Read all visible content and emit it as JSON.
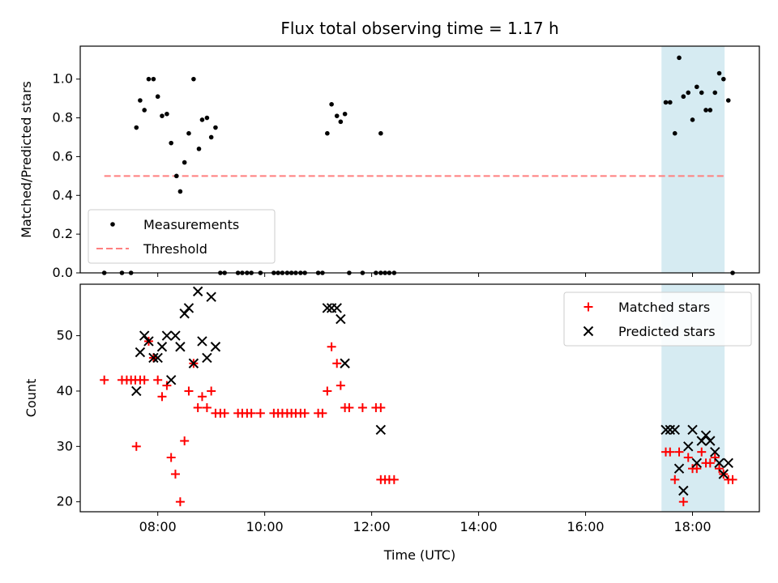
{
  "title": "Flux total observing time = 1.17 h",
  "chart_data": [
    {
      "type": "scatter",
      "panel": "top",
      "ylabel": "Matched/Predicted stars",
      "ylim": [
        0,
        1.17
      ],
      "yticks": [
        0.0,
        0.2,
        0.4,
        0.6,
        0.8,
        1.0
      ],
      "ytick_labels": [
        "0.0",
        "0.2",
        "0.4",
        "0.6",
        "0.8",
        "1.0"
      ],
      "highlight_span": [
        17.42,
        18.6
      ],
      "legend": {
        "placement": "lower-left",
        "entries": [
          "Measurements",
          "Threshold"
        ]
      },
      "threshold": {
        "name": "Threshold",
        "y": 0.5,
        "x_range": [
          7.0,
          18.62
        ],
        "color": "#ff7f7f",
        "style": "dashed"
      },
      "series": [
        {
          "name": "Measurements",
          "color": "#000000",
          "marker": "dot",
          "points": [
            [
              7.0,
              0.0
            ],
            [
              7.33,
              0.0
            ],
            [
              7.5,
              0.0
            ],
            [
              7.6,
              0.75
            ],
            [
              7.67,
              0.89
            ],
            [
              7.75,
              0.84
            ],
            [
              7.83,
              1.0
            ],
            [
              7.92,
              1.0
            ],
            [
              8.0,
              0.91
            ],
            [
              8.08,
              0.81
            ],
            [
              8.17,
              0.82
            ],
            [
              8.25,
              0.67
            ],
            [
              8.35,
              0.5
            ],
            [
              8.42,
              0.42
            ],
            [
              8.5,
              0.57
            ],
            [
              8.58,
              0.72
            ],
            [
              8.67,
              1.0
            ],
            [
              8.77,
              0.64
            ],
            [
              8.83,
              0.79
            ],
            [
              8.92,
              0.8
            ],
            [
              9.0,
              0.7
            ],
            [
              9.08,
              0.75
            ],
            [
              9.17,
              0.0
            ],
            [
              9.25,
              0.0
            ],
            [
              9.5,
              0.0
            ],
            [
              9.58,
              0.0
            ],
            [
              9.67,
              0.0
            ],
            [
              9.75,
              0.0
            ],
            [
              9.92,
              0.0
            ],
            [
              10.17,
              0.0
            ],
            [
              10.25,
              0.0
            ],
            [
              10.33,
              0.0
            ],
            [
              10.42,
              0.0
            ],
            [
              10.5,
              0.0
            ],
            [
              10.58,
              0.0
            ],
            [
              10.67,
              0.0
            ],
            [
              10.75,
              0.0
            ],
            [
              11.0,
              0.0
            ],
            [
              11.08,
              0.0
            ],
            [
              11.17,
              0.72
            ],
            [
              11.25,
              0.87
            ],
            [
              11.35,
              0.81
            ],
            [
              11.42,
              0.78
            ],
            [
              11.5,
              0.82
            ],
            [
              11.58,
              0.0
            ],
            [
              11.83,
              0.0
            ],
            [
              12.08,
              0.0
            ],
            [
              12.17,
              0.72
            ],
            [
              12.17,
              0.0
            ],
            [
              12.25,
              0.0
            ],
            [
              12.33,
              0.0
            ],
            [
              12.42,
              0.0
            ],
            [
              17.5,
              0.88
            ],
            [
              17.58,
              0.88
            ],
            [
              17.67,
              0.72
            ],
            [
              17.75,
              1.11
            ],
            [
              17.83,
              0.91
            ],
            [
              17.92,
              0.93
            ],
            [
              18.0,
              0.79
            ],
            [
              18.08,
              0.96
            ],
            [
              18.17,
              0.93
            ],
            [
              18.25,
              0.84
            ],
            [
              18.33,
              0.84
            ],
            [
              18.42,
              0.93
            ],
            [
              18.5,
              1.03
            ],
            [
              18.58,
              1.0
            ],
            [
              18.67,
              0.89
            ],
            [
              18.75,
              0.0
            ]
          ]
        }
      ]
    },
    {
      "type": "scatter",
      "panel": "bottom",
      "xlabel": "Time (UTC)",
      "ylabel": "Count",
      "xlim": [
        6.55,
        19.25
      ],
      "ylim": [
        18.2,
        59.3
      ],
      "xticks": [
        8,
        10,
        12,
        14,
        16,
        18
      ],
      "xtick_labels": [
        "08:00",
        "10:00",
        "12:00",
        "14:00",
        "16:00",
        "18:00"
      ],
      "yticks": [
        20,
        30,
        40,
        50
      ],
      "ytick_labels": [
        "20",
        "30",
        "40",
        "50"
      ],
      "highlight_span": [
        17.42,
        18.6
      ],
      "legend": {
        "placement": "top-right",
        "entries": [
          "Matched stars",
          "Predicted stars"
        ]
      },
      "series": [
        {
          "name": "Matched stars",
          "color": "#ff0000",
          "marker": "plus",
          "points": [
            [
              7.0,
              42
            ],
            [
              7.33,
              42
            ],
            [
              7.42,
              42
            ],
            [
              7.5,
              42
            ],
            [
              7.58,
              42
            ],
            [
              7.6,
              30
            ],
            [
              7.67,
              42
            ],
            [
              7.75,
              42
            ],
            [
              7.83,
              49
            ],
            [
              7.92,
              46
            ],
            [
              8.0,
              42
            ],
            [
              8.08,
              39
            ],
            [
              8.17,
              41
            ],
            [
              8.25,
              28
            ],
            [
              8.33,
              25
            ],
            [
              8.42,
              20
            ],
            [
              8.5,
              31
            ],
            [
              8.58,
              40
            ],
            [
              8.67,
              45
            ],
            [
              8.75,
              37
            ],
            [
              8.83,
              39
            ],
            [
              8.92,
              37
            ],
            [
              9.0,
              40
            ],
            [
              9.08,
              36
            ],
            [
              9.17,
              36
            ],
            [
              9.25,
              36
            ],
            [
              9.5,
              36
            ],
            [
              9.58,
              36
            ],
            [
              9.67,
              36
            ],
            [
              9.75,
              36
            ],
            [
              9.92,
              36
            ],
            [
              10.17,
              36
            ],
            [
              10.25,
              36
            ],
            [
              10.33,
              36
            ],
            [
              10.42,
              36
            ],
            [
              10.5,
              36
            ],
            [
              10.58,
              36
            ],
            [
              10.67,
              36
            ],
            [
              10.75,
              36
            ],
            [
              11.0,
              36
            ],
            [
              11.08,
              36
            ],
            [
              11.17,
              40
            ],
            [
              11.25,
              48
            ],
            [
              11.35,
              45
            ],
            [
              11.42,
              41
            ],
            [
              11.5,
              37
            ],
            [
              11.58,
              37
            ],
            [
              11.83,
              37
            ],
            [
              12.08,
              37
            ],
            [
              12.17,
              37
            ],
            [
              12.17,
              24
            ],
            [
              12.25,
              24
            ],
            [
              12.33,
              24
            ],
            [
              12.42,
              24
            ],
            [
              17.5,
              29
            ],
            [
              17.58,
              29
            ],
            [
              17.67,
              24
            ],
            [
              17.75,
              29
            ],
            [
              17.83,
              20
            ],
            [
              17.92,
              28
            ],
            [
              18.0,
              26
            ],
            [
              18.08,
              26
            ],
            [
              18.17,
              29
            ],
            [
              18.25,
              27
            ],
            [
              18.33,
              27
            ],
            [
              18.42,
              28
            ],
            [
              18.5,
              26
            ],
            [
              18.58,
              25
            ],
            [
              18.67,
              24
            ],
            [
              18.75,
              24
            ]
          ]
        },
        {
          "name": "Predicted stars",
          "color": "#000000",
          "marker": "x",
          "points": [
            [
              7.6,
              40
            ],
            [
              7.67,
              47
            ],
            [
              7.75,
              50
            ],
            [
              7.83,
              49
            ],
            [
              7.92,
              46
            ],
            [
              8.0,
              46
            ],
            [
              8.08,
              48
            ],
            [
              8.17,
              50
            ],
            [
              8.25,
              42
            ],
            [
              8.33,
              50
            ],
            [
              8.42,
              48
            ],
            [
              8.5,
              54
            ],
            [
              8.58,
              55
            ],
            [
              8.67,
              45
            ],
            [
              8.75,
              58
            ],
            [
              8.83,
              49
            ],
            [
              8.92,
              46
            ],
            [
              9.0,
              57
            ],
            [
              9.08,
              48
            ],
            [
              11.17,
              55
            ],
            [
              11.25,
              55
            ],
            [
              11.35,
              55
            ],
            [
              11.42,
              53
            ],
            [
              11.5,
              45
            ],
            [
              12.17,
              33
            ],
            [
              17.5,
              33
            ],
            [
              17.58,
              33
            ],
            [
              17.67,
              33
            ],
            [
              17.75,
              26
            ],
            [
              17.83,
              22
            ],
            [
              17.92,
              30
            ],
            [
              18.0,
              33
            ],
            [
              18.08,
              27
            ],
            [
              18.17,
              31
            ],
            [
              18.25,
              32
            ],
            [
              18.33,
              31
            ],
            [
              18.42,
              29
            ],
            [
              18.5,
              27
            ],
            [
              18.58,
              25
            ],
            [
              18.67,
              27
            ]
          ]
        }
      ]
    }
  ]
}
